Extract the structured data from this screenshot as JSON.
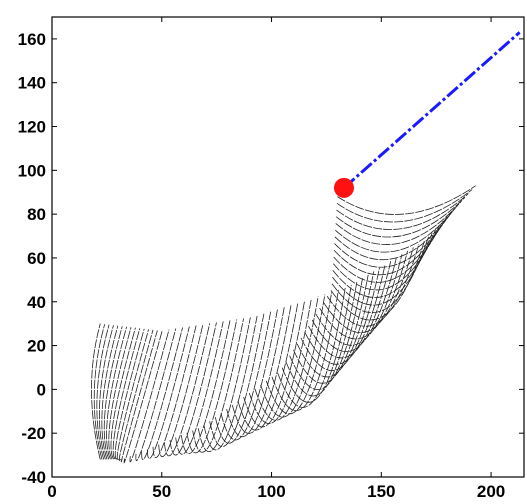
{
  "chart_data": {
    "type": "line",
    "title": "",
    "xlabel": "",
    "ylabel": "",
    "xlim": [
      0,
      215
    ],
    "ylim": [
      -40,
      170
    ],
    "x_ticks": [
      "0",
      "50",
      "100",
      "150",
      "200"
    ],
    "y_ticks": [
      "-40",
      "-20",
      "0",
      "20",
      "40",
      "60",
      "80",
      "100",
      "120",
      "140",
      "160"
    ],
    "grid": false,
    "series": [
      {
        "kind": "arc_family",
        "color": "#222222",
        "style": "dashed",
        "count": 70,
        "first_arc": {
          "start": [
            22,
            -32
          ],
          "mid": [
            18,
            0
          ],
          "end": [
            22,
            30
          ]
        },
        "last_arc": {
          "start": [
            130,
            88
          ],
          "mid": [
            160,
            80
          ],
          "end": [
            193,
            93
          ]
        },
        "spine": [
          [
            5,
            0
          ],
          [
            20,
            -22
          ],
          [
            60,
            -20
          ],
          [
            100,
            0
          ],
          [
            128,
            40
          ],
          [
            135,
            88
          ]
        ]
      },
      {
        "kind": "line",
        "color": "#1a1aff",
        "style": "dash-dot",
        "x": [
          133,
          213
        ],
        "y": [
          92,
          163
        ]
      },
      {
        "kind": "point",
        "color": "#ff1111",
        "x": [
          133
        ],
        "y": [
          92
        ]
      }
    ]
  }
}
